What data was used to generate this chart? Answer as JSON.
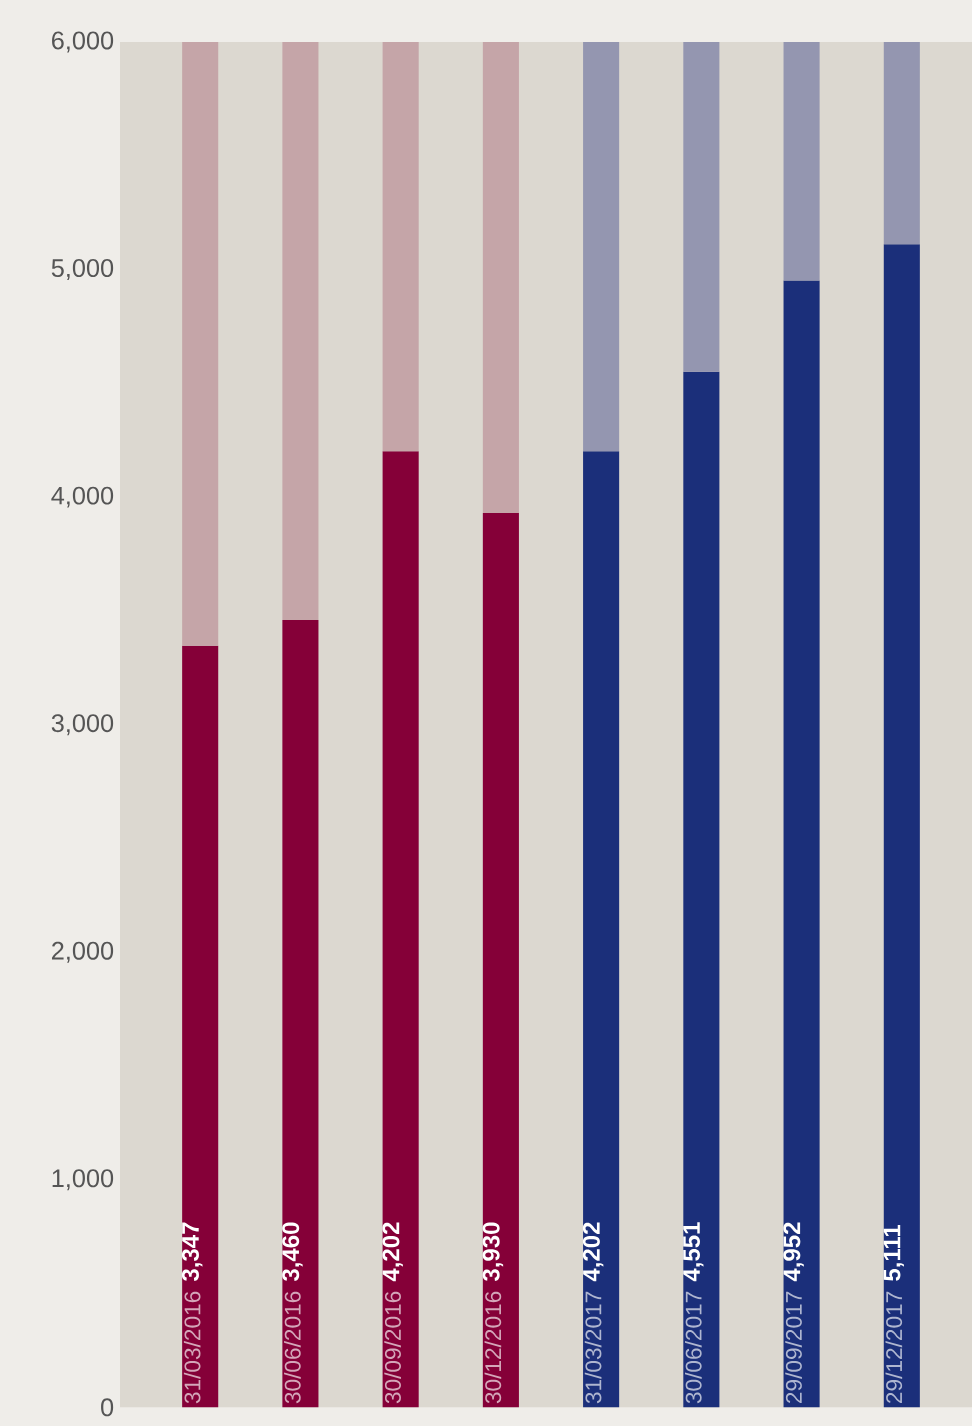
{
  "chart_data": {
    "type": "bar",
    "stacked": true,
    "categories": [
      "31/03/2016",
      "30/06/2016",
      "30/09/2016",
      "30/12/2016",
      "31/03/2017",
      "30/06/2017",
      "29/09/2017",
      "29/12/2017"
    ],
    "series": [
      {
        "values": [
          3347,
          3460,
          4202,
          3930,
          4202,
          4551,
          4952,
          5111
        ],
        "colors": [
          "#850038",
          "#850038",
          "#850038",
          "#850038",
          "#1b2f7a",
          "#1b2f7a",
          "#1b2f7a",
          "#1b2f7a"
        ],
        "value_labels": [
          "3,347",
          "3,460",
          "4,202",
          "3,930",
          "4,202",
          "4,551",
          "4,952",
          "5,111"
        ]
      },
      {
        "values": [
          2653,
          2540,
          1798,
          2070,
          1798,
          1449,
          1048,
          889
        ],
        "colors": [
          "#c5a5a8",
          "#c5a5a8",
          "#c5a5a8",
          "#c5a5a8",
          "#9496b0",
          "#9496b0",
          "#9496b0",
          "#9496b0"
        ]
      }
    ],
    "ylim": [
      0,
      6000
    ],
    "yticks": [
      {
        "value": 0,
        "label": "0"
      },
      {
        "value": 1000,
        "label": "1,000"
      },
      {
        "value": 2000,
        "label": "2,000"
      },
      {
        "value": 3000,
        "label": "3,000"
      },
      {
        "value": 4000,
        "label": "4,000"
      },
      {
        "value": 5000,
        "label": "5,000"
      },
      {
        "value": 6000,
        "label": "6,000"
      }
    ]
  }
}
